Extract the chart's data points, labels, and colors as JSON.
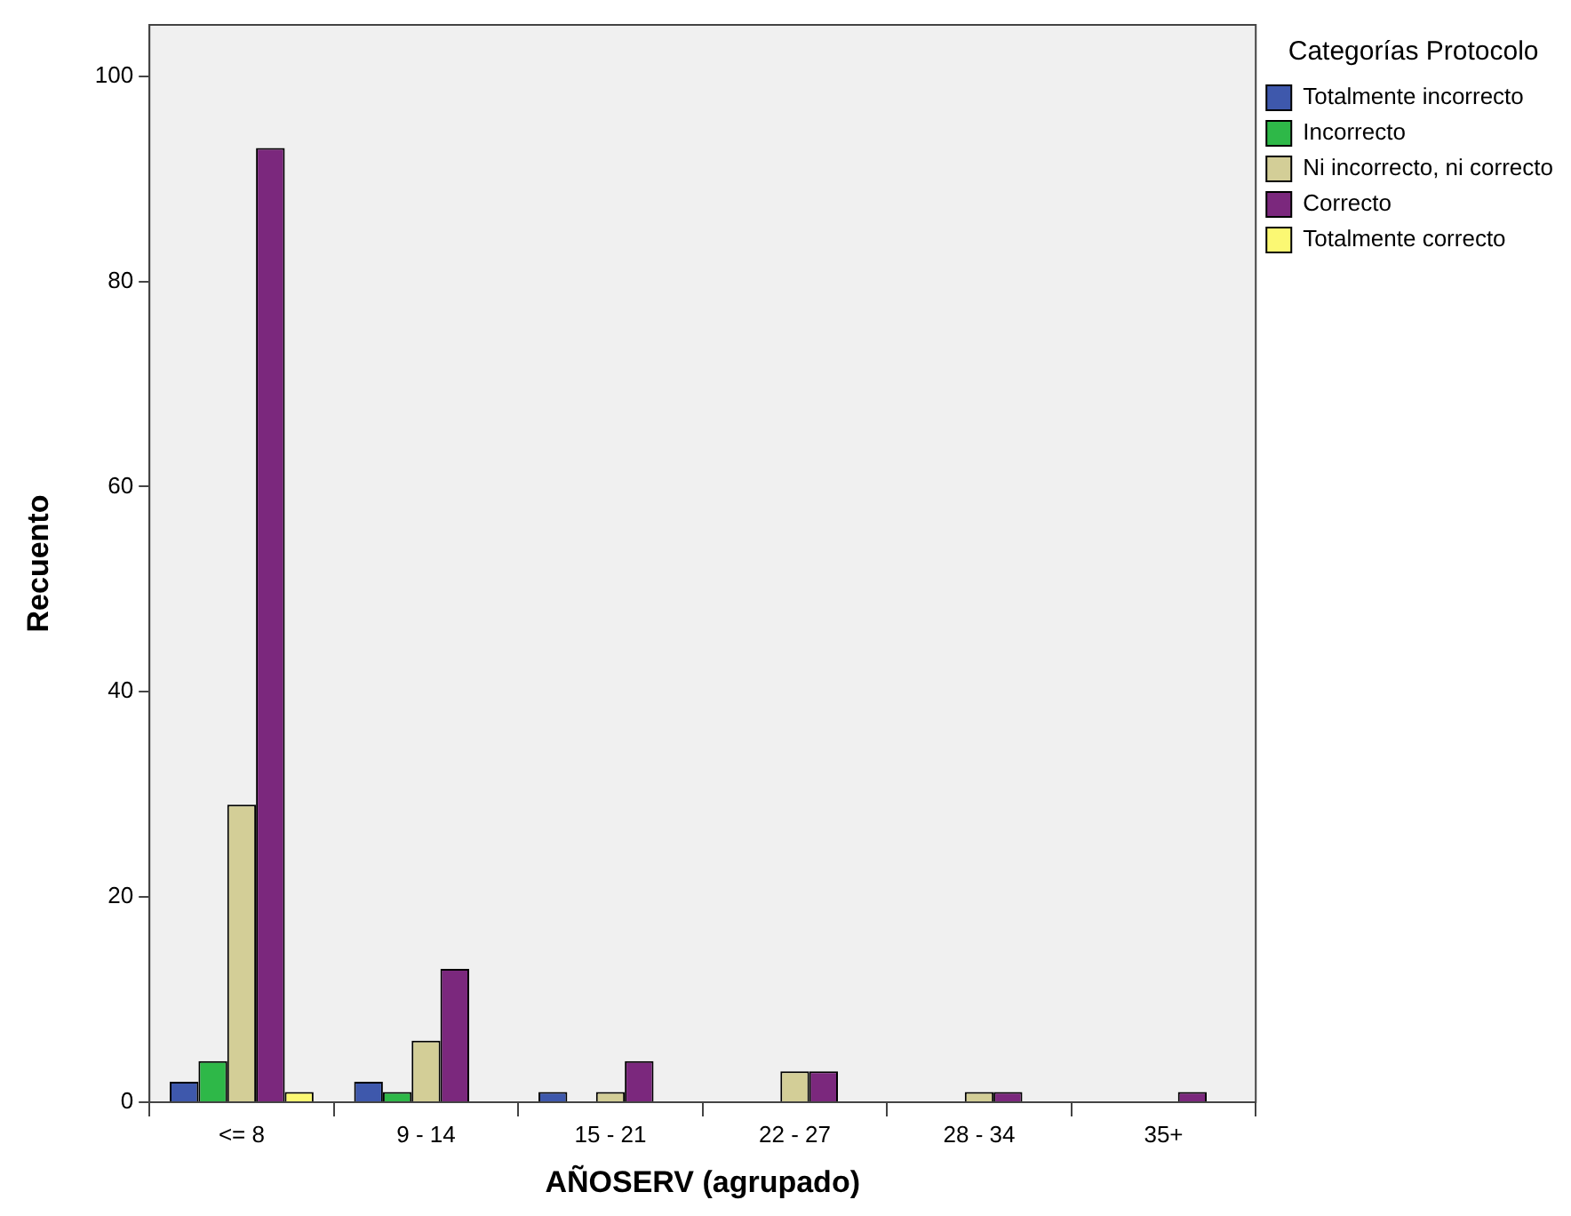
{
  "chart_data": {
    "type": "bar",
    "xlabel": "AÑOSERV (agrupado)",
    "ylabel": "Recuento",
    "legend_title": "Categorías Protocolo",
    "categories": [
      "<= 8",
      "9 - 14",
      "15 - 21",
      "22 - 27",
      "28 - 34",
      "35+"
    ],
    "series": [
      {
        "name": "Totalmente incorrecto",
        "color": "#3e58ac",
        "values": [
          2,
          2,
          1,
          null,
          null,
          null
        ]
      },
      {
        "name": "Incorrecto",
        "color": "#2eb848",
        "values": [
          4,
          1,
          null,
          null,
          null,
          null
        ]
      },
      {
        "name": "Ni incorrecto, ni correcto",
        "color": "#d3ce97",
        "values": [
          29,
          6,
          1,
          3,
          1,
          null
        ]
      },
      {
        "name": "Correcto",
        "color": "#7b287d",
        "values": [
          93,
          13,
          4,
          3,
          1,
          1
        ]
      },
      {
        "name": "Totalmente correcto",
        "color": "#fbf873",
        "values": [
          1,
          null,
          null,
          null,
          null,
          null
        ]
      }
    ],
    "ylim": [
      0,
      105
    ],
    "yticks": [
      0,
      20,
      40,
      60,
      80,
      100
    ],
    "grid": false,
    "legend": "top right"
  }
}
